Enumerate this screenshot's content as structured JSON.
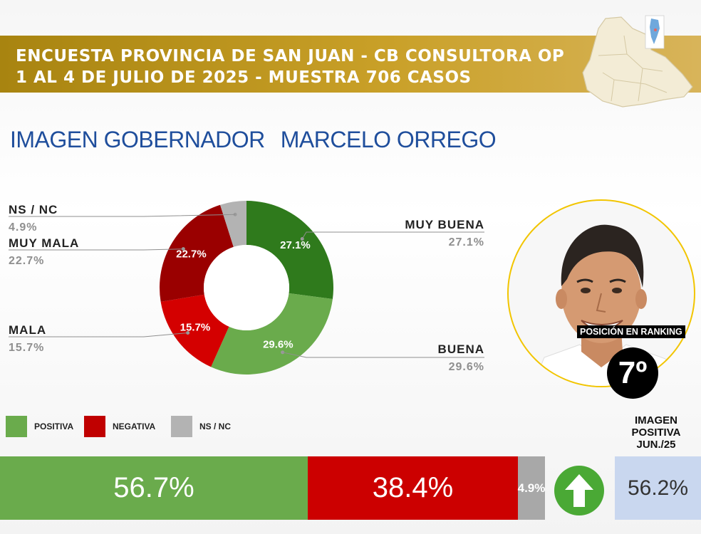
{
  "header": {
    "line1": "ENCUESTA PROVINCIA DE SAN JUAN - CB CONSULTORA OP",
    "line2": "1 AL 4 DE JULIO DE 2025 - MUESTRA 706 CASOS"
  },
  "title": {
    "prefix": "IMAGEN GOBERNADOR",
    "name": "MARCELO ORREGO"
  },
  "colors": {
    "muy_buena": "#2f7a1c",
    "buena": "#6aab4c",
    "mala": "#d40000",
    "muy_mala": "#9a0000",
    "ns_nc": "#b3b3b3",
    "header": "#c9a028",
    "title": "#1f4e9c"
  },
  "chart_data": {
    "type": "pie",
    "subtype": "donut",
    "slices": [
      {
        "label": "MUY BUENA",
        "value": 27.1,
        "display": "27.1%"
      },
      {
        "label": "BUENA",
        "value": 29.6,
        "display": "29.6%"
      },
      {
        "label": "MALA",
        "value": 15.7,
        "display": "15.7%"
      },
      {
        "label": "MUY MALA",
        "value": 22.7,
        "display": "22.7%"
      },
      {
        "label": "NS / NC",
        "value": 4.9,
        "display": "4.9%"
      }
    ]
  },
  "legend": {
    "positiva": "POSITIVA",
    "negativa": "NEGATIVA",
    "ns_nc": "NS / NC"
  },
  "summary": {
    "positiva": "56.7%",
    "negativa": "38.4%",
    "ns_nc": "4.9%",
    "positiva_value": 56.7,
    "negativa_value": 38.4,
    "ns_nc_value": 4.9
  },
  "previous": {
    "label_line1": "IMAGEN",
    "label_line2": "POSITIVA",
    "label_line3": "JUN./25",
    "value": "56.2%",
    "trend_icon": "arrow-up-icon"
  },
  "ranking": {
    "label": "POSICIÓN EN RANKING",
    "position": "7º"
  }
}
